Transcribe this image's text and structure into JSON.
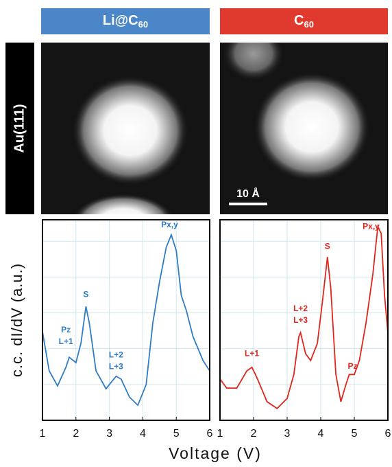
{
  "figure": {
    "side_label": "Au(111)",
    "scale_bar": "10 Å",
    "ylabel": "c.c. dI/dV (a.u.)",
    "xlabel": "Voltage (V)"
  },
  "chart_data": [
    {
      "type": "line",
      "title": "Li@C",
      "title_subscript": "60",
      "color": "#2f7cc4",
      "header_color": "#4a86c8",
      "x": [
        1.0,
        1.2,
        1.45,
        1.7,
        1.8,
        2.0,
        2.15,
        2.3,
        2.4,
        2.6,
        2.9,
        3.0,
        3.2,
        3.35,
        3.6,
        3.85,
        4.1,
        4.3,
        4.5,
        4.7,
        4.85,
        5.0,
        5.15,
        5.3,
        5.5,
        5.8,
        6.0
      ],
      "values": [
        2.47,
        1.38,
        0.96,
        1.48,
        1.76,
        1.61,
        2.15,
        3.18,
        2.72,
        1.38,
        0.88,
        1.0,
        1.23,
        1.15,
        0.65,
        0.42,
        1.0,
        2.72,
        3.87,
        4.83,
        5.18,
        4.74,
        3.49,
        3.07,
        2.34,
        1.67,
        1.38
      ],
      "xlim": [
        1,
        6
      ],
      "ylim": [
        0,
        5.6
      ],
      "xticks": [
        1,
        2,
        3,
        4,
        5,
        6
      ],
      "ygrid": [
        1,
        2,
        3,
        4,
        5
      ],
      "grid": true,
      "annotations": [
        {
          "lines": [
            "Pz",
            "L+1"
          ],
          "x": 1.7,
          "y": 2.35
        },
        {
          "lines": [
            "S"
          ],
          "x": 2.3,
          "y": 3.5
        },
        {
          "lines": [
            "L+2",
            "L+3"
          ],
          "x": 3.2,
          "y": 1.65
        },
        {
          "lines": [
            "Px,y"
          ],
          "x": 4.8,
          "y": 5.45
        }
      ]
    },
    {
      "type": "line",
      "title": "C",
      "title_subscript": "60",
      "color": "#e0251b",
      "header_color": "#e03a2e",
      "x": [
        1.0,
        1.2,
        1.5,
        1.8,
        1.95,
        2.1,
        2.4,
        2.7,
        3.0,
        3.2,
        3.35,
        3.4,
        3.55,
        3.7,
        3.9,
        4.05,
        4.2,
        4.3,
        4.45,
        4.6,
        4.75,
        4.85,
        5.0,
        5.15,
        5.35,
        5.55,
        5.7,
        5.8,
        5.9,
        6.0
      ],
      "values": [
        1.15,
        0.9,
        0.9,
        1.38,
        1.48,
        1.19,
        0.52,
        0.33,
        0.61,
        1.28,
        2.34,
        2.45,
        1.86,
        1.67,
        2.15,
        3.3,
        4.56,
        3.68,
        1.28,
        0.52,
        1.0,
        1.28,
        1.28,
        1.67,
        2.72,
        4.07,
        5.41,
        5.22,
        3.49,
        2.44
      ],
      "xlim": [
        1,
        6
      ],
      "ylim": [
        0,
        5.6
      ],
      "xticks": [
        1,
        2,
        3,
        4,
        5,
        6
      ],
      "ygrid": [
        1,
        2,
        3,
        4,
        5
      ],
      "grid": true,
      "annotations": [
        {
          "lines": [
            "L+1"
          ],
          "x": 1.95,
          "y": 1.85
        },
        {
          "lines": [
            "L+2",
            "L+3"
          ],
          "x": 3.4,
          "y": 2.95
        },
        {
          "lines": [
            "S"
          ],
          "x": 4.2,
          "y": 4.85
        },
        {
          "lines": [
            "Pz"
          ],
          "x": 4.95,
          "y": 1.5
        },
        {
          "lines": [
            "Px,y"
          ],
          "x": 5.5,
          "y": 5.4
        }
      ]
    }
  ]
}
